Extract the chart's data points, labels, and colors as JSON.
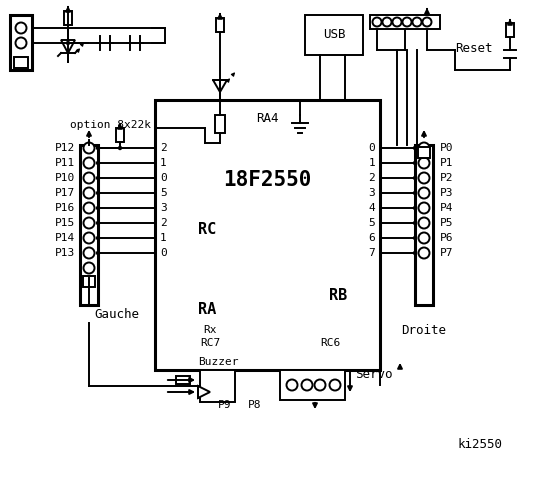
{
  "bg_color": "#ffffff",
  "title": "ki2550",
  "chip_label": "18F2550",
  "ra4_label": "RA4",
  "rc_label": "RC",
  "ra_label": "RA",
  "rb_label": "RB",
  "rx_label": "Rx",
  "rc7_label": "RC7",
  "rc6_label": "RC6",
  "rc_pins": [
    "2",
    "1",
    "0",
    "5",
    "3",
    "2",
    "1",
    "0"
  ],
  "rb_pins": [
    "0",
    "1",
    "2",
    "3",
    "4",
    "5",
    "6",
    "7"
  ],
  "left_labels": [
    "P12",
    "P11",
    "P10",
    "P17",
    "P16",
    "P15",
    "P14",
    "P13"
  ],
  "right_labels": [
    "P0",
    "P1",
    "P2",
    "P3",
    "P4",
    "P5",
    "P6",
    "P7"
  ],
  "gauche_label": "Gauche",
  "droite_label": "Droite",
  "reset_label": "Reset",
  "usb_label": "USB",
  "option_label": "option 8x22k",
  "buzzer_label": "Buzzer",
  "p9_label": "P9",
  "p8_label": "P8",
  "servo_label": "Servo",
  "figsize": [
    5.53,
    4.8
  ],
  "dpi": 100,
  "lw": 1.4,
  "lw_thick": 2.2
}
